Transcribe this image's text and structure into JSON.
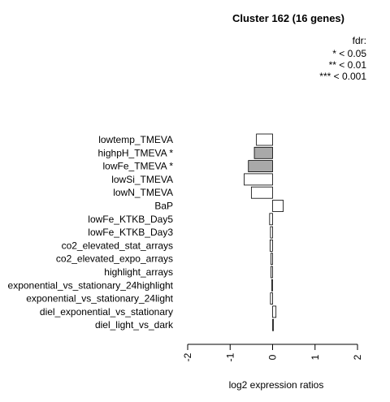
{
  "chart_data": {
    "type": "bar",
    "orientation": "horizontal",
    "title": "Cluster 162 (16 genes)",
    "xlabel": "log2 expression ratios",
    "ylabel": "",
    "xlim": [
      -2,
      2
    ],
    "xticks": [
      "-2",
      "-1",
      "0",
      "1",
      "2"
    ],
    "legend": {
      "title": "fdr:",
      "entries": [
        "* < 0.05",
        "** < 0.01",
        "*** < 0.001"
      ],
      "placement": "top-right"
    },
    "categories": [
      "lowtemp_TMEVA",
      "highpH_TMEVA *",
      "lowFe_TMEVA *",
      "lowSi_TMEVA",
      "lowN_TMEVA",
      "BaP",
      "lowFe_KTKB_Day5",
      "lowFe_KTKB_Day3",
      "co2_elevated_stat_arrays",
      "co2_elevated_expo_arrays",
      "highlight_arrays",
      "exponential_vs_stationary_24highlight",
      "exponential_vs_stationary_24light",
      "diel_exponential_vs_stationary",
      "diel_light_vs_dark"
    ],
    "values": [
      -0.38,
      -0.43,
      -0.57,
      -0.67,
      -0.5,
      0.25,
      -0.07,
      -0.05,
      -0.06,
      -0.04,
      -0.04,
      -0.02,
      -0.05,
      0.08,
      0.02
    ],
    "significant": [
      false,
      true,
      true,
      false,
      false,
      false,
      false,
      false,
      false,
      false,
      false,
      false,
      false,
      false,
      false
    ],
    "colors": {
      "significant": "#a9a9a9",
      "normal": "#ffffff",
      "stroke": "#000000"
    }
  }
}
